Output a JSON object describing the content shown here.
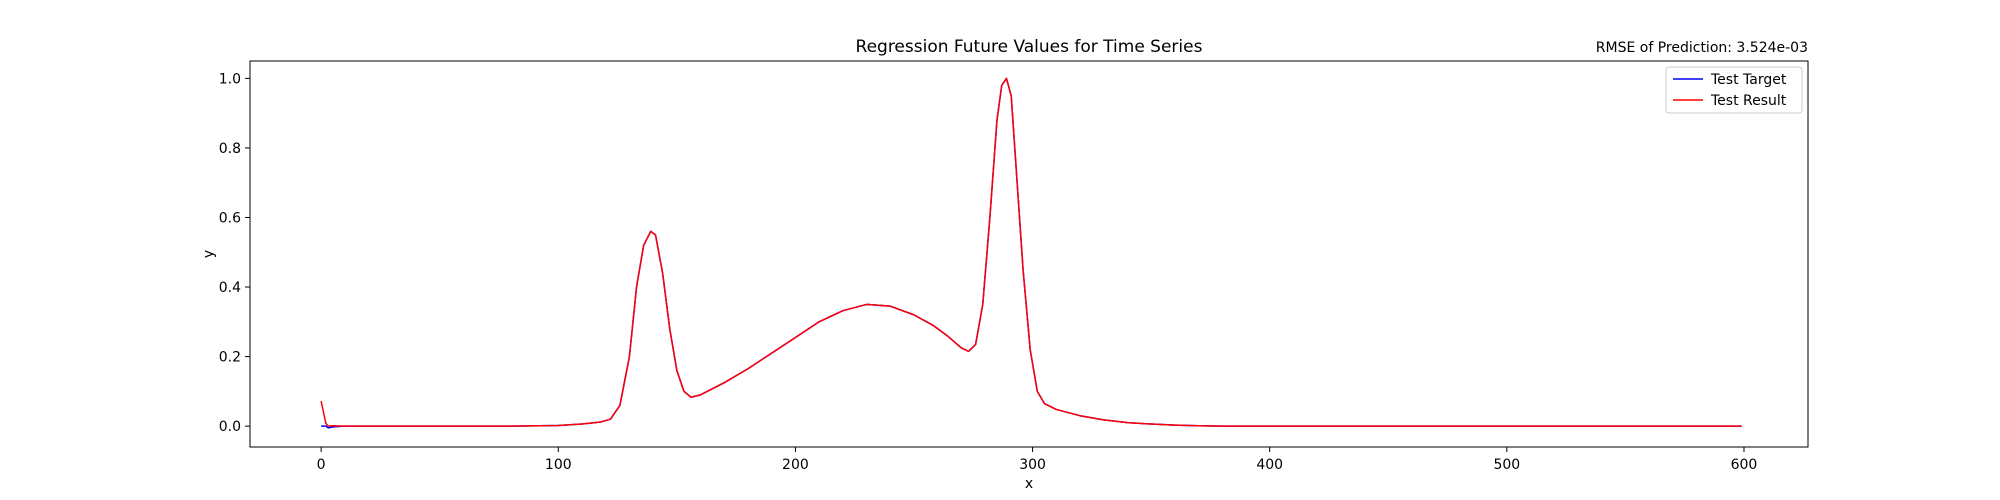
{
  "chart_data": {
    "type": "line",
    "title": "Regression Future Values for Time Series",
    "annotation": "RMSE of Prediction: 3.524e-03",
    "xlabel": "x",
    "ylabel": "y",
    "xlim": [
      -30,
      627
    ],
    "ylim": [
      -0.06,
      1.05
    ],
    "xticks": [
      0,
      100,
      200,
      300,
      400,
      500,
      600
    ],
    "yticks": [
      0.0,
      0.2,
      0.4,
      0.6,
      0.8,
      1.0
    ],
    "xtick_labels": [
      "0",
      "100",
      "200",
      "300",
      "400",
      "500",
      "600"
    ],
    "ytick_labels": [
      "0.0",
      "0.2",
      "0.4",
      "0.6",
      "0.8",
      "1.0"
    ],
    "grid": false,
    "legend_position": "top-right",
    "series": [
      {
        "name": "Test Target",
        "color": "#0000ff",
        "x": [
          0,
          2,
          3,
          5,
          10,
          50,
          80,
          100,
          110,
          118,
          122,
          126,
          130,
          133,
          136,
          139,
          141,
          144,
          147,
          150,
          153,
          156,
          160,
          170,
          180,
          190,
          200,
          210,
          220,
          230,
          240,
          250,
          258,
          264,
          270,
          273,
          276,
          279,
          282,
          285,
          287,
          289,
          291,
          293,
          296,
          299,
          302,
          305,
          310,
          320,
          330,
          340,
          350,
          360,
          370,
          380,
          400,
          450,
          500,
          550,
          599
        ],
        "y": [
          0.0,
          0.0,
          -0.005,
          -0.002,
          0.0,
          0.0,
          0.0,
          0.002,
          0.006,
          0.012,
          0.02,
          0.06,
          0.2,
          0.4,
          0.52,
          0.56,
          0.55,
          0.44,
          0.28,
          0.16,
          0.1,
          0.083,
          0.09,
          0.125,
          0.165,
          0.21,
          0.255,
          0.3,
          0.332,
          0.35,
          0.345,
          0.32,
          0.29,
          0.26,
          0.225,
          0.215,
          0.235,
          0.35,
          0.6,
          0.88,
          0.98,
          1.0,
          0.95,
          0.75,
          0.45,
          0.22,
          0.1,
          0.065,
          0.048,
          0.03,
          0.018,
          0.01,
          0.006,
          0.003,
          0.001,
          0.0,
          0.0,
          0.0,
          0.0,
          0.0,
          0.0
        ]
      },
      {
        "name": "Test Result",
        "color": "#ff0000",
        "x": [
          0,
          1,
          2,
          3,
          5,
          10,
          50,
          80,
          100,
          110,
          118,
          122,
          126,
          130,
          133,
          136,
          139,
          141,
          144,
          147,
          150,
          153,
          156,
          160,
          170,
          180,
          190,
          200,
          210,
          220,
          230,
          240,
          250,
          258,
          264,
          270,
          273,
          276,
          279,
          282,
          285,
          287,
          289,
          291,
          293,
          296,
          299,
          302,
          305,
          310,
          320,
          330,
          340,
          350,
          360,
          370,
          380,
          400,
          450,
          500,
          550,
          599
        ],
        "y": [
          0.072,
          0.04,
          0.008,
          0.0,
          0.001,
          0.0,
          0.0,
          0.0,
          0.002,
          0.006,
          0.012,
          0.02,
          0.06,
          0.2,
          0.4,
          0.52,
          0.56,
          0.55,
          0.44,
          0.28,
          0.16,
          0.1,
          0.083,
          0.09,
          0.125,
          0.165,
          0.21,
          0.255,
          0.3,
          0.332,
          0.35,
          0.345,
          0.32,
          0.29,
          0.26,
          0.225,
          0.215,
          0.235,
          0.35,
          0.6,
          0.88,
          0.98,
          1.0,
          0.95,
          0.75,
          0.45,
          0.22,
          0.1,
          0.065,
          0.048,
          0.03,
          0.018,
          0.01,
          0.006,
          0.003,
          0.001,
          0.0,
          0.0,
          0.0,
          0.0,
          0.0,
          0.0
        ]
      }
    ]
  }
}
